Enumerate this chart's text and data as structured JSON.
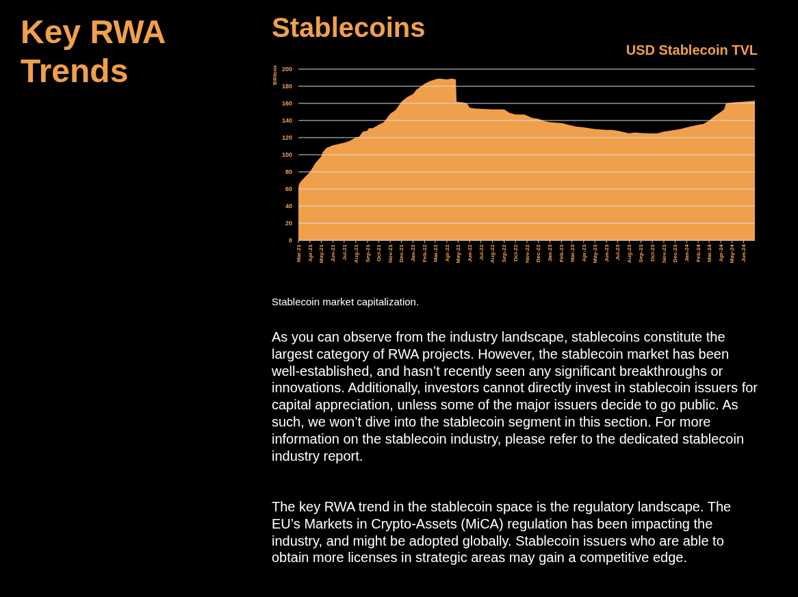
{
  "chart_data": {
    "type": "area",
    "title": "USD Stablecoin TVL",
    "ylabel": "Billions",
    "annotations": [
      "Key RWA Trends",
      "Stablecoins",
      "Stablecoin market capitalization.",
      "As you can observe from the industry landscape, stablecoins constitute the largest category of RWA projects. However, the stablecoin market has been well-established, and hasn’t recently seen any significant breakthroughs or innovations. Additionally, investors cannot directly invest in stablecoin issuers for capital appreciation, unless some of the major issuers decide to go public. As such, we won’t dive into the stablecoin segment in this section. For more information on the stablecoin industry, please refer to the dedicated stablecoin industry report.",
      "The key RWA trend in the stablecoin space is the regulatory landscape. The EU’s Markets in Crypto-Assets (MiCA) regulation has been impacting the industry, and might be adopted globally. Stablecoin issuers who are able to obtain more licenses in strategic areas may gain a competitive edge."
    ],
    "x": [
      "2021-03-01",
      "2021-03-03",
      "2021-03-10",
      "2021-04-01",
      "2021-04-15",
      "2021-05-01",
      "2021-05-05",
      "2021-05-15",
      "2021-06-01",
      "2021-07-01",
      "2021-07-15",
      "2021-08-01",
      "2021-08-10",
      "2021-08-20",
      "2021-09-01",
      "2021-09-05",
      "2021-09-15",
      "2021-10-01",
      "2021-10-15",
      "2021-11-01",
      "2021-11-15",
      "2021-12-01",
      "2021-12-15",
      "2022-01-01",
      "2022-01-10",
      "2022-02-01",
      "2022-02-15",
      "2022-03-01",
      "2022-03-10",
      "2022-04-01",
      "2022-04-15",
      "2022-04-25",
      "2022-04-27",
      "2022-05-15",
      "2022-05-25",
      "2022-06-01",
      "2022-06-15",
      "2022-08-01",
      "2022-09-01",
      "2022-09-15",
      "2022-10-01",
      "2022-10-10",
      "2022-10-25",
      "2022-11-15",
      "2022-12-01",
      "2022-12-20",
      "2023-01-01",
      "2023-02-01",
      "2023-03-01",
      "2023-03-10",
      "2023-04-01",
      "2023-05-01",
      "2023-06-01",
      "2023-06-15",
      "2023-07-01",
      "2023-08-01",
      "2023-08-15",
      "2023-09-15",
      "2023-10-15",
      "2023-11-01",
      "2023-12-01",
      "2023-12-15",
      "2024-01-01",
      "2024-02-01",
      "2024-02-15",
      "2024-03-01",
      "2024-03-15",
      "2024-04-01",
      "2024-04-10",
      "2024-04-15",
      "2024-05-01",
      "2024-06-01",
      "2024-07-01"
    ],
    "series": [
      {
        "color": "#f0a04b",
        "values": [
          62,
          66,
          70,
          80,
          90,
          98,
          103,
          108,
          111,
          114,
          116,
          120,
          121,
          127,
          128,
          131,
          131,
          135,
          138,
          148,
          152,
          162,
          167,
          171,
          176,
          183,
          186,
          188,
          189,
          188,
          189,
          188,
          162,
          161,
          160,
          155,
          154,
          153,
          153,
          149,
          147,
          147,
          147,
          143,
          142,
          139,
          138,
          137,
          134,
          133,
          132,
          130,
          129,
          129,
          128,
          125,
          126,
          125,
          125,
          127,
          129,
          130,
          132,
          135,
          136,
          140,
          145,
          150,
          153,
          160,
          161,
          162,
          163
        ]
      }
    ],
    "xlim": [
      "2021-03-01",
      "2024-07-01"
    ],
    "xticks": [
      {
        "value": "2021-03-01",
        "label": "Mar-21"
      },
      {
        "value": "2021-04-01",
        "label": "Apr-21"
      },
      {
        "value": "2021-05-01",
        "label": "May-21"
      },
      {
        "value": "2021-06-01",
        "label": "Jun-21"
      },
      {
        "value": "2021-07-01",
        "label": "Jul-21"
      },
      {
        "value": "2021-08-01",
        "label": "Aug-21"
      },
      {
        "value": "2021-09-01",
        "label": "Sep-21"
      },
      {
        "value": "2021-10-01",
        "label": "Oct-21"
      },
      {
        "value": "2021-11-01",
        "label": "Nov-21"
      },
      {
        "value": "2021-12-01",
        "label": "Dec-21"
      },
      {
        "value": "2022-01-01",
        "label": "Jan-22"
      },
      {
        "value": "2022-02-01",
        "label": "Feb-22"
      },
      {
        "value": "2022-03-01",
        "label": "Mar-22"
      },
      {
        "value": "2022-04-01",
        "label": "Apr-22"
      },
      {
        "value": "2022-05-01",
        "label": "May-22"
      },
      {
        "value": "2022-06-01",
        "label": "Jun-22"
      },
      {
        "value": "2022-07-01",
        "label": "Jul-22"
      },
      {
        "value": "2022-08-01",
        "label": "Aug-22"
      },
      {
        "value": "2022-09-01",
        "label": "Sep-22"
      },
      {
        "value": "2022-10-01",
        "label": "Oct-22"
      },
      {
        "value": "2022-11-01",
        "label": "Nov-22"
      },
      {
        "value": "2022-12-01",
        "label": "Dec-22"
      },
      {
        "value": "2023-01-01",
        "label": "Jan-23"
      },
      {
        "value": "2023-02-01",
        "label": "Feb-23"
      },
      {
        "value": "2023-03-01",
        "label": "Mar-23"
      },
      {
        "value": "2023-04-01",
        "label": "Apr-23"
      },
      {
        "value": "2023-05-01",
        "label": "May-23"
      },
      {
        "value": "2023-06-01",
        "label": "Jun-23"
      },
      {
        "value": "2023-07-01",
        "label": "Jul-23"
      },
      {
        "value": "2023-08-01",
        "label": "Aug-23"
      },
      {
        "value": "2023-09-01",
        "label": "Sep-23"
      },
      {
        "value": "2023-10-01",
        "label": "Oct-23"
      },
      {
        "value": "2023-11-01",
        "label": "Nov-23"
      },
      {
        "value": "2023-12-01",
        "label": "Dec-23"
      },
      {
        "value": "2024-01-01",
        "label": "Jan-24"
      },
      {
        "value": "2024-02-01",
        "label": "Feb-24"
      },
      {
        "value": "2024-03-01",
        "label": "Mar-24"
      },
      {
        "value": "2024-04-01",
        "label": "Apr-24"
      },
      {
        "value": "2024-05-01",
        "label": "May-24"
      },
      {
        "value": "2024-06-01",
        "label": "Jun-24"
      }
    ],
    "ylim": [
      0,
      200
    ],
    "yticks": [
      0,
      20,
      40,
      60,
      80,
      100,
      120,
      140,
      160,
      180,
      200
    ],
    "grid": "y"
  }
}
